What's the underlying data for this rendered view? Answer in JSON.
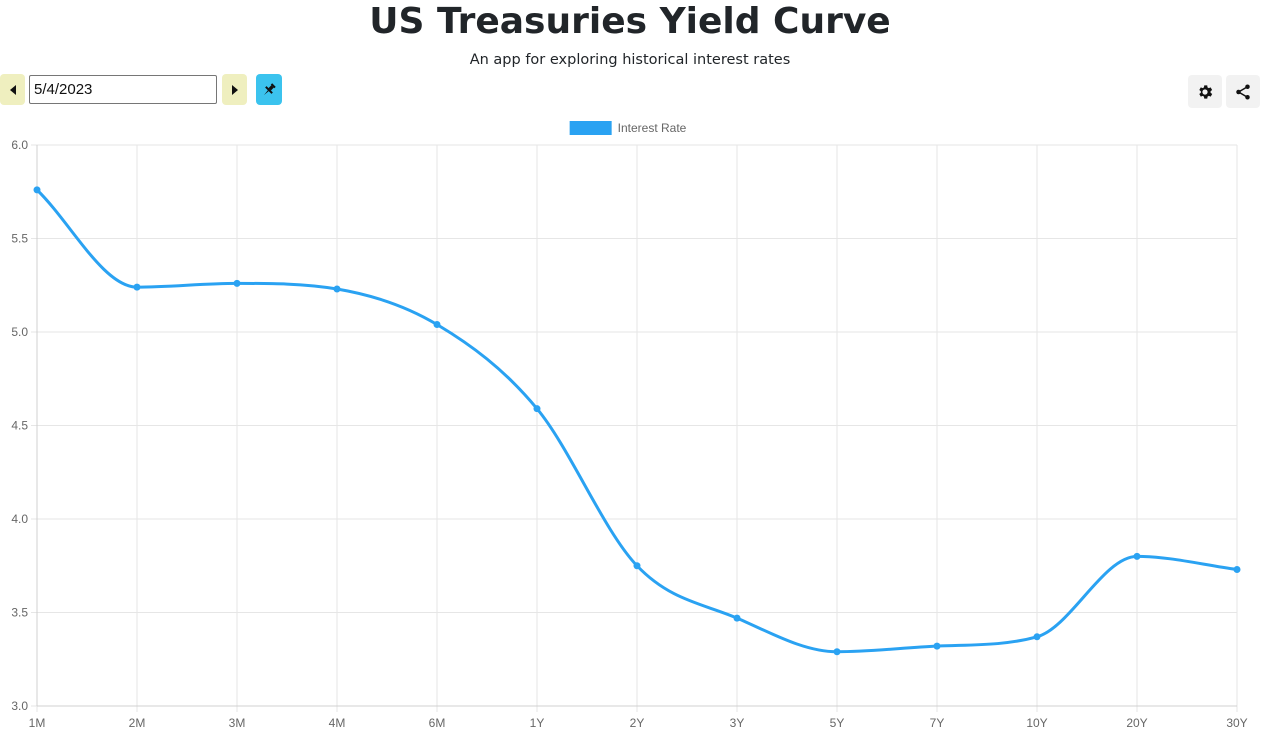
{
  "header": {
    "title": "US Treasuries Yield Curve",
    "subtitle": "An app for exploring historical interest rates"
  },
  "date_picker": {
    "value": "5/4/2023",
    "prev_icon": "caret-left-icon",
    "next_icon": "caret-right-icon",
    "pin_icon": "pin-icon"
  },
  "toolbar": {
    "settings_icon": "gear-icon",
    "share_icon": "share-icon"
  },
  "colors": {
    "line": "#2aa2f2",
    "grid": "#e6e6e6",
    "nav_button": "#efefbf",
    "pin_button": "#3bc3ee"
  },
  "chart_data": {
    "type": "line",
    "categories": [
      "1M",
      "2M",
      "3M",
      "4M",
      "6M",
      "1Y",
      "2Y",
      "3Y",
      "5Y",
      "7Y",
      "10Y",
      "20Y",
      "30Y"
    ],
    "series": [
      {
        "name": "Interest Rate",
        "values": [
          5.76,
          5.24,
          5.26,
          5.23,
          5.04,
          4.59,
          3.75,
          3.47,
          3.29,
          3.32,
          3.37,
          3.8,
          3.73
        ]
      }
    ],
    "ylim": [
      3.0,
      6.0
    ],
    "yticks": [
      "3.0",
      "3.5",
      "4.0",
      "4.5",
      "5.0",
      "5.5",
      "6.0"
    ],
    "grid": true,
    "legend": "top-center",
    "smooth": true
  }
}
